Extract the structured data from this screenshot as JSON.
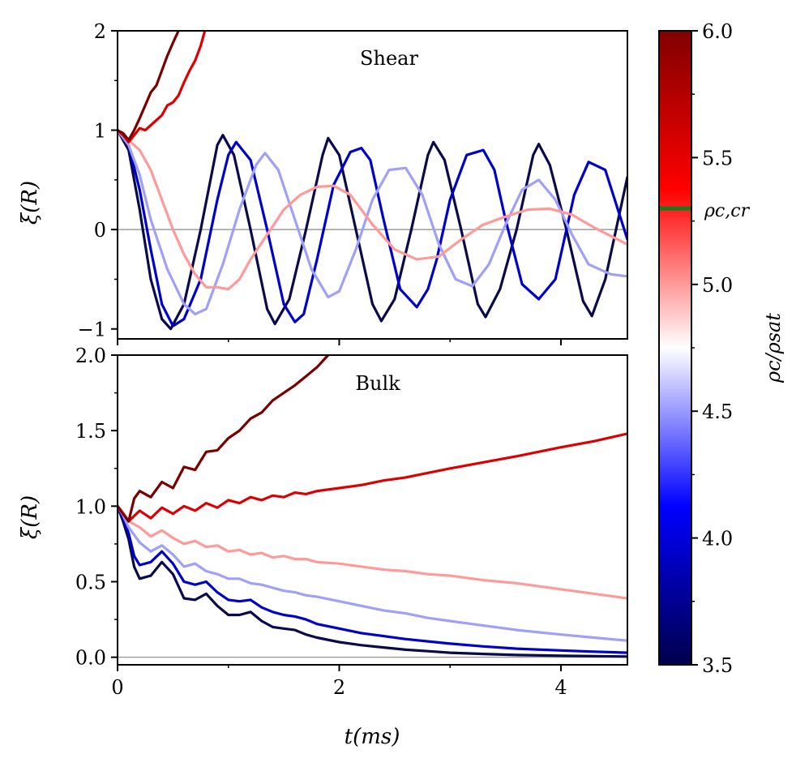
{
  "chart_data": [
    {
      "id": "shear",
      "type": "line",
      "panel_label": "Shear",
      "ylabel": "ξ(R)",
      "xlabel": "",
      "xlim": [
        0,
        4.6
      ],
      "ylim": [
        -1.1,
        2
      ],
      "yticks": [
        -1,
        0,
        1,
        2
      ],
      "ytick_labels": [
        "−1",
        "0",
        "1",
        "2"
      ],
      "zero_line": true,
      "series": [
        {
          "color": "#0a0a4a",
          "x": [
            0,
            0.1,
            0.2,
            0.3,
            0.4,
            0.48,
            0.6,
            0.75,
            0.9,
            0.95,
            1.05,
            1.2,
            1.35,
            1.42,
            1.55,
            1.7,
            1.85,
            1.9,
            2.0,
            2.15,
            2.3,
            2.38,
            2.5,
            2.65,
            2.8,
            2.85,
            2.95,
            3.1,
            3.25,
            3.32,
            3.45,
            3.6,
            3.75,
            3.8,
            3.9,
            4.05,
            4.2,
            4.28,
            4.4,
            4.6
          ],
          "y": [
            1.0,
            0.8,
            0.2,
            -0.5,
            -0.9,
            -1.0,
            -0.75,
            0.0,
            0.85,
            0.95,
            0.75,
            0.0,
            -0.8,
            -0.95,
            -0.7,
            0.0,
            0.75,
            0.92,
            0.75,
            0.0,
            -0.75,
            -0.92,
            -0.7,
            0.0,
            0.75,
            0.88,
            0.7,
            0.0,
            -0.75,
            -0.88,
            -0.6,
            0.0,
            0.75,
            0.86,
            0.65,
            0.0,
            -0.72,
            -0.87,
            -0.5,
            0.53
          ]
        },
        {
          "color": "#0000cc",
          "x": [
            0,
            0.1,
            0.2,
            0.3,
            0.4,
            0.5,
            0.6,
            0.75,
            0.9,
            1.0,
            1.07,
            1.2,
            1.35,
            1.5,
            1.6,
            1.68,
            1.8,
            1.95,
            2.1,
            2.2,
            2.28,
            2.4,
            2.55,
            2.7,
            2.8,
            2.88,
            3.0,
            3.15,
            3.3,
            3.4,
            3.5,
            3.65,
            3.8,
            3.95,
            4.05,
            4.12,
            4.25,
            4.4,
            4.6
          ],
          "y": [
            1.0,
            0.85,
            0.4,
            -0.2,
            -0.75,
            -0.97,
            -0.9,
            -0.5,
            0.3,
            0.75,
            0.88,
            0.7,
            0.0,
            -0.75,
            -0.93,
            -0.85,
            -0.3,
            0.45,
            0.78,
            0.82,
            0.7,
            0.1,
            -0.6,
            -0.78,
            -0.6,
            -0.3,
            0.3,
            0.75,
            0.8,
            0.6,
            0.1,
            -0.55,
            -0.7,
            -0.5,
            0.0,
            0.35,
            0.68,
            0.6,
            -0.1
          ]
        },
        {
          "color": "#a0a0f8",
          "x": [
            0,
            0.1,
            0.2,
            0.3,
            0.45,
            0.6,
            0.7,
            0.8,
            0.95,
            1.1,
            1.25,
            1.33,
            1.45,
            1.6,
            1.75,
            1.9,
            2.0,
            2.15,
            2.3,
            2.45,
            2.6,
            2.75,
            2.9,
            3.05,
            3.2,
            3.35,
            3.5,
            3.65,
            3.8,
            3.95,
            4.1,
            4.25,
            4.45,
            4.6
          ],
          "y": [
            1.0,
            0.85,
            0.55,
            0.1,
            -0.4,
            -0.75,
            -0.85,
            -0.8,
            -0.35,
            0.2,
            0.65,
            0.77,
            0.6,
            0.1,
            -0.4,
            -0.68,
            -0.62,
            -0.2,
            0.3,
            0.6,
            0.62,
            0.35,
            -0.15,
            -0.5,
            -0.57,
            -0.35,
            0.05,
            0.4,
            0.5,
            0.3,
            -0.05,
            -0.35,
            -0.45,
            -0.47
          ]
        },
        {
          "color": "#ff9a9a",
          "x": [
            0,
            0.1,
            0.2,
            0.3,
            0.4,
            0.5,
            0.6,
            0.7,
            0.8,
            0.9,
            1.0,
            1.1,
            1.2,
            1.35,
            1.5,
            1.65,
            1.8,
            1.95,
            2.1,
            2.3,
            2.5,
            2.7,
            2.9,
            3.1,
            3.3,
            3.5,
            3.7,
            3.9,
            4.1,
            4.3,
            4.6
          ],
          "y": [
            1.0,
            0.9,
            0.8,
            0.6,
            0.3,
            0.0,
            -0.25,
            -0.45,
            -0.58,
            -0.58,
            -0.6,
            -0.5,
            -0.3,
            -0.05,
            0.2,
            0.35,
            0.43,
            0.44,
            0.35,
            0.05,
            -0.2,
            -0.3,
            -0.27,
            -0.1,
            0.05,
            0.13,
            0.2,
            0.21,
            0.15,
            0.02,
            -0.15
          ]
        },
        {
          "color": "#dd0000",
          "x": [
            0,
            0.05,
            0.1,
            0.15,
            0.2,
            0.25,
            0.3,
            0.35,
            0.4,
            0.45,
            0.5,
            0.55,
            0.6,
            0.65,
            0.7,
            0.75,
            0.8
          ],
          "y": [
            1.0,
            0.95,
            0.88,
            0.95,
            1.02,
            1.0,
            1.05,
            1.1,
            1.15,
            1.25,
            1.28,
            1.35,
            1.48,
            1.6,
            1.7,
            1.85,
            2.05
          ]
        },
        {
          "color": "#7a0000",
          "x": [
            0,
            0.05,
            0.1,
            0.15,
            0.2,
            0.25,
            0.3,
            0.35,
            0.4,
            0.45,
            0.5,
            0.55,
            0.6
          ],
          "y": [
            1.0,
            0.97,
            0.9,
            1.0,
            1.12,
            1.25,
            1.38,
            1.45,
            1.6,
            1.75,
            1.88,
            2.0,
            2.1
          ]
        }
      ]
    },
    {
      "id": "bulk",
      "type": "line",
      "panel_label": "Bulk",
      "ylabel": "ξ(R)",
      "xlabel": "t(ms)",
      "xlim": [
        0,
        4.6
      ],
      "ylim": [
        -0.05,
        2.0
      ],
      "xticks": [
        0,
        2,
        4
      ],
      "xtick_labels": [
        "0",
        "2",
        "4"
      ],
      "yticks": [
        0.0,
        0.5,
        1.0,
        1.5,
        2.0
      ],
      "ytick_labels": [
        "0.0",
        "0.5",
        "1.0",
        "1.5",
        "2.0"
      ],
      "zero_line": true,
      "series": [
        {
          "color": "#0a0a4a",
          "x": [
            0,
            0.05,
            0.1,
            0.15,
            0.2,
            0.3,
            0.4,
            0.5,
            0.6,
            0.7,
            0.8,
            0.9,
            1.0,
            1.1,
            1.2,
            1.3,
            1.4,
            1.5,
            1.6,
            1.7,
            1.8,
            2.0,
            2.2,
            2.4,
            2.6,
            2.8,
            3.0,
            3.3,
            3.6,
            4.0,
            4.3,
            4.6
          ],
          "y": [
            1.0,
            0.9,
            0.78,
            0.6,
            0.52,
            0.54,
            0.63,
            0.55,
            0.39,
            0.38,
            0.42,
            0.34,
            0.28,
            0.28,
            0.3,
            0.24,
            0.2,
            0.19,
            0.18,
            0.15,
            0.13,
            0.1,
            0.08,
            0.065,
            0.05,
            0.04,
            0.03,
            0.022,
            0.015,
            0.01,
            0.007,
            0.005
          ]
        },
        {
          "color": "#0000cc",
          "x": [
            0,
            0.05,
            0.1,
            0.15,
            0.2,
            0.3,
            0.4,
            0.5,
            0.6,
            0.7,
            0.8,
            0.9,
            1.0,
            1.1,
            1.2,
            1.3,
            1.4,
            1.5,
            1.6,
            1.7,
            1.8,
            2.0,
            2.2,
            2.4,
            2.6,
            2.8,
            3.0,
            3.3,
            3.6,
            4.0,
            4.3,
            4.6
          ],
          "y": [
            1.0,
            0.92,
            0.82,
            0.67,
            0.61,
            0.63,
            0.7,
            0.62,
            0.5,
            0.48,
            0.5,
            0.43,
            0.38,
            0.37,
            0.38,
            0.33,
            0.3,
            0.28,
            0.27,
            0.25,
            0.22,
            0.19,
            0.16,
            0.14,
            0.12,
            0.105,
            0.09,
            0.072,
            0.057,
            0.045,
            0.037,
            0.03
          ]
        },
        {
          "color": "#a0a0f8",
          "x": [
            0,
            0.05,
            0.1,
            0.2,
            0.3,
            0.4,
            0.5,
            0.6,
            0.7,
            0.8,
            0.9,
            1.0,
            1.1,
            1.2,
            1.3,
            1.4,
            1.5,
            1.6,
            1.7,
            1.8,
            2.0,
            2.2,
            2.4,
            2.6,
            2.8,
            3.0,
            3.3,
            3.6,
            4.0,
            4.3,
            4.6
          ],
          "y": [
            1.0,
            0.94,
            0.86,
            0.76,
            0.7,
            0.74,
            0.68,
            0.6,
            0.62,
            0.57,
            0.55,
            0.52,
            0.52,
            0.49,
            0.48,
            0.46,
            0.44,
            0.43,
            0.41,
            0.4,
            0.37,
            0.34,
            0.31,
            0.29,
            0.26,
            0.24,
            0.21,
            0.18,
            0.15,
            0.13,
            0.11
          ]
        },
        {
          "color": "#ff9a9a",
          "x": [
            0,
            0.05,
            0.1,
            0.2,
            0.3,
            0.4,
            0.5,
            0.6,
            0.7,
            0.8,
            0.9,
            1.0,
            1.1,
            1.2,
            1.3,
            1.4,
            1.5,
            1.6,
            1.7,
            1.8,
            2.0,
            2.2,
            2.4,
            2.6,
            2.8,
            3.0,
            3.3,
            3.6,
            4.0,
            4.3,
            4.6
          ],
          "y": [
            1.0,
            0.96,
            0.9,
            0.86,
            0.8,
            0.84,
            0.79,
            0.75,
            0.77,
            0.73,
            0.74,
            0.7,
            0.71,
            0.68,
            0.69,
            0.66,
            0.67,
            0.65,
            0.65,
            0.63,
            0.62,
            0.6,
            0.58,
            0.57,
            0.55,
            0.54,
            0.51,
            0.49,
            0.45,
            0.42,
            0.39
          ]
        },
        {
          "color": "#dd0000",
          "x": [
            0,
            0.05,
            0.1,
            0.2,
            0.3,
            0.4,
            0.5,
            0.6,
            0.7,
            0.8,
            0.9,
            1.0,
            1.1,
            1.2,
            1.3,
            1.4,
            1.5,
            1.6,
            1.7,
            1.8,
            2.0,
            2.2,
            2.4,
            2.6,
            2.8,
            3.0,
            3.3,
            3.6,
            4.0,
            4.3,
            4.6
          ],
          "y": [
            1.0,
            0.95,
            0.9,
            0.97,
            0.92,
            0.99,
            0.95,
            1.0,
            0.97,
            1.02,
            0.99,
            1.04,
            1.02,
            1.06,
            1.04,
            1.07,
            1.06,
            1.09,
            1.08,
            1.1,
            1.12,
            1.14,
            1.17,
            1.19,
            1.22,
            1.25,
            1.29,
            1.33,
            1.39,
            1.43,
            1.48
          ]
        },
        {
          "color": "#7a0000",
          "x": [
            0,
            0.05,
            0.1,
            0.15,
            0.2,
            0.3,
            0.4,
            0.5,
            0.6,
            0.7,
            0.8,
            0.9,
            1.0,
            1.1,
            1.2,
            1.3,
            1.4,
            1.5,
            1.6,
            1.7,
            1.8,
            1.9
          ],
          "y": [
            1.0,
            0.95,
            0.9,
            1.05,
            1.1,
            1.06,
            1.16,
            1.12,
            1.26,
            1.24,
            1.36,
            1.37,
            1.45,
            1.5,
            1.58,
            1.62,
            1.7,
            1.75,
            1.8,
            1.86,
            1.92,
            2.0
          ]
        }
      ]
    }
  ],
  "colorbar": {
    "label": "ρc/ρsat",
    "range": [
      3.5,
      6.0
    ],
    "ticks": [
      3.5,
      4.0,
      4.5,
      5.0,
      5.5,
      6.0
    ],
    "tick_labels": [
      "3.5",
      "4.0",
      "4.5",
      "5.0",
      "5.5",
      "6.0"
    ],
    "stops": [
      "#00004c",
      "#0000ff",
      "#ffffff",
      "#ff0000",
      "#800000"
    ],
    "marker_value": 5.3,
    "marker_label": "ρc,cr",
    "marker_color": "#1a7a1a"
  }
}
